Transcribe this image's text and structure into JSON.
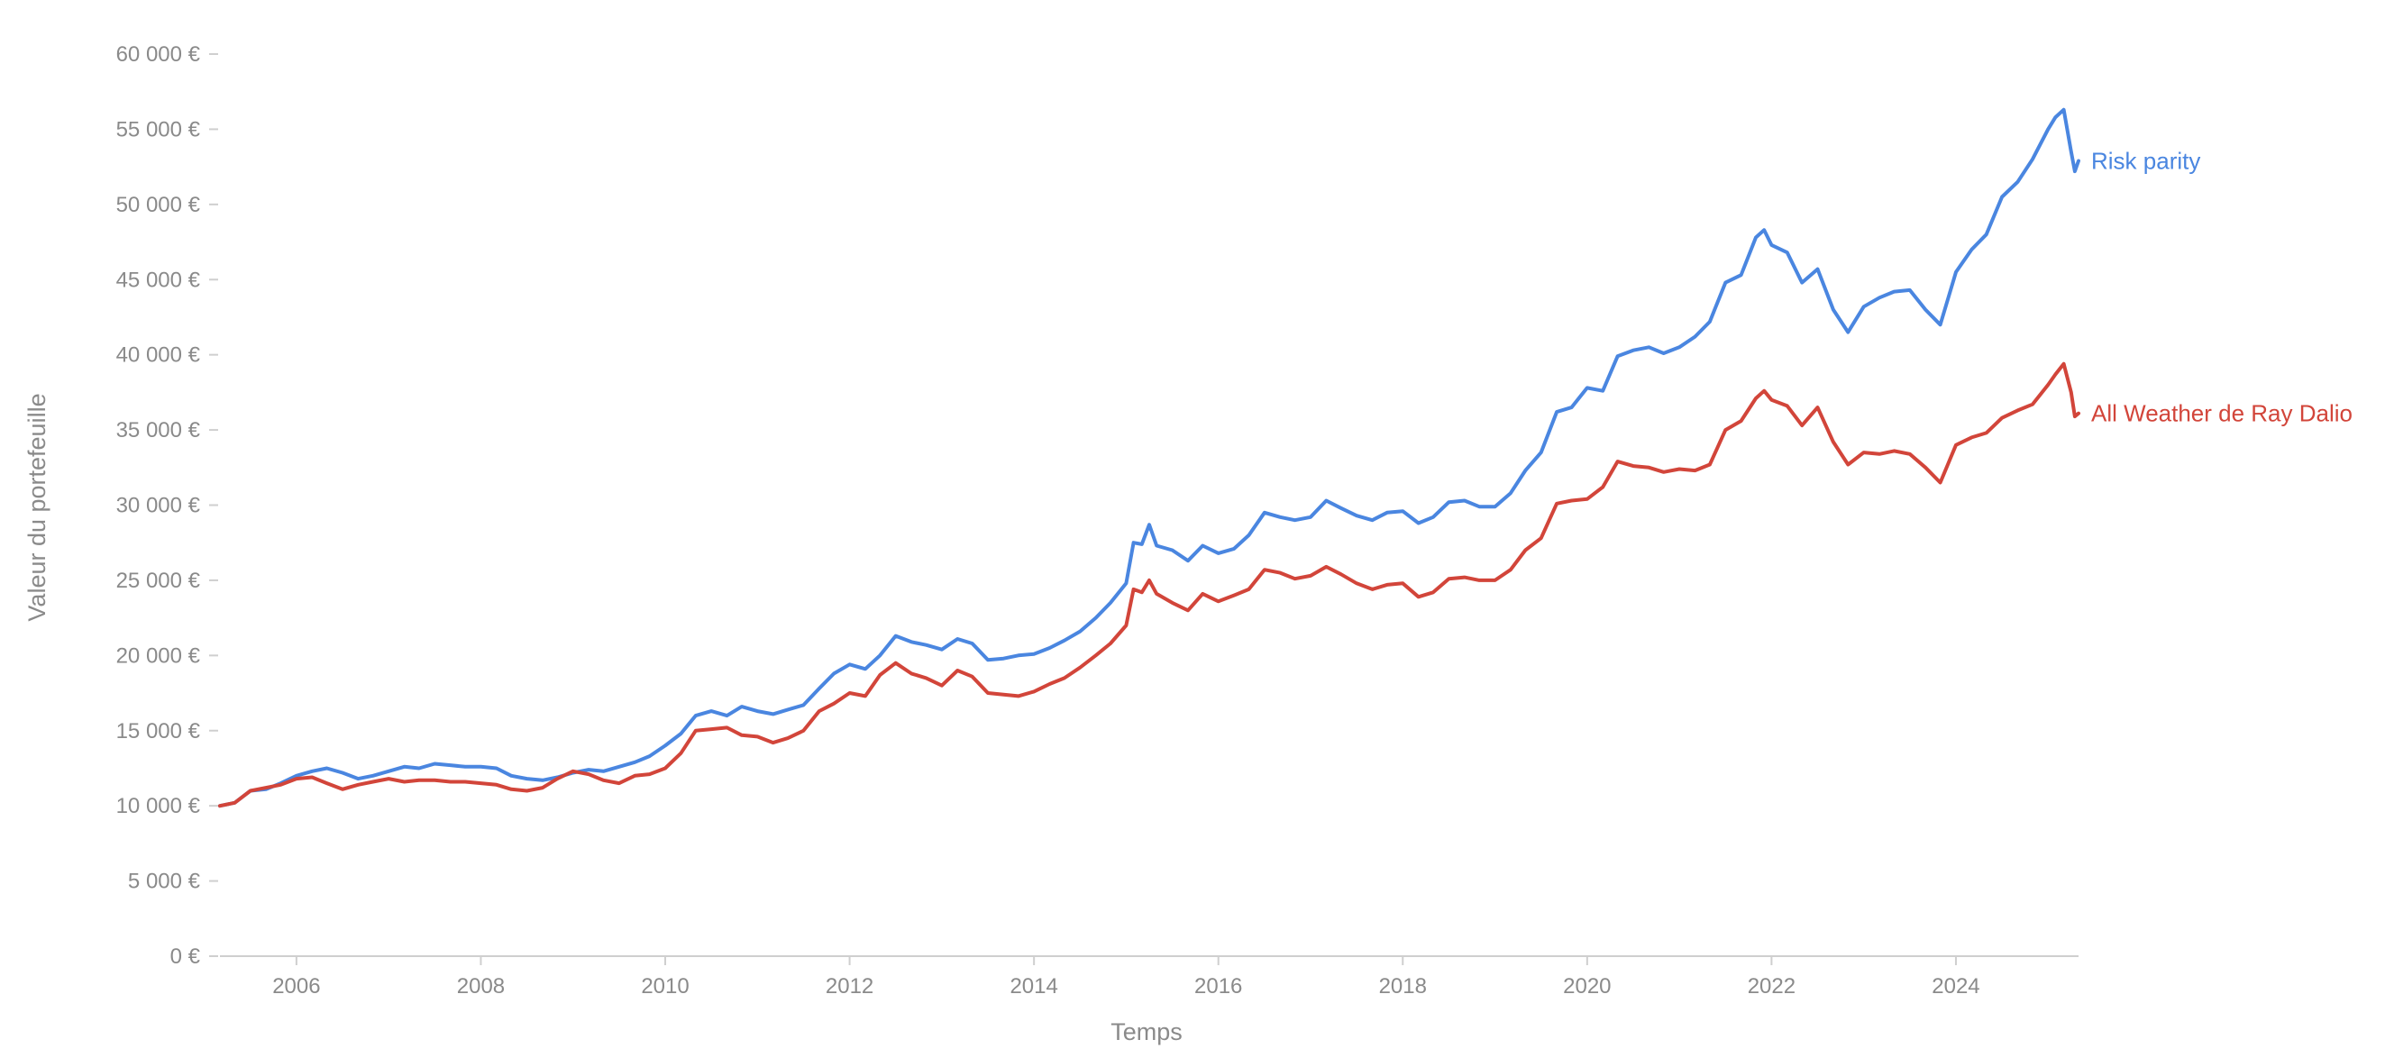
{
  "chart_data": {
    "type": "line",
    "xlabel": "Temps",
    "ylabel": "Valeur du portefeuille",
    "ylim": [
      0,
      60000
    ],
    "xlim": [
      2005.17,
      2025.33
    ],
    "yticks": [
      0,
      5000,
      10000,
      15000,
      20000,
      25000,
      30000,
      35000,
      40000,
      45000,
      50000,
      55000,
      60000
    ],
    "ytick_labels": [
      "0 €",
      "5 000 €",
      "10 000 €",
      "15 000 €",
      "20 000 €",
      "25 000 €",
      "30 000 €",
      "35 000 €",
      "40 000 €",
      "45 000 €",
      "50 000 €",
      "55 000 €",
      "60 000 €"
    ],
    "xticks": [
      2006,
      2008,
      2010,
      2012,
      2014,
      2016,
      2018,
      2020,
      2022,
      2024
    ],
    "xtick_labels": [
      "2006",
      "2008",
      "2010",
      "2012",
      "2014",
      "2016",
      "2018",
      "2020",
      "2022",
      "2024"
    ],
    "grid": false,
    "legend": "direct labels at line ends",
    "series": [
      {
        "name": "Risk parity",
        "color": "#4a86e0",
        "points": [
          [
            2005.17,
            10000
          ],
          [
            2005.33,
            10200
          ],
          [
            2005.5,
            11000
          ],
          [
            2005.67,
            11100
          ],
          [
            2005.83,
            11500
          ],
          [
            2006.0,
            12000
          ],
          [
            2006.17,
            12300
          ],
          [
            2006.33,
            12500
          ],
          [
            2006.5,
            12200
          ],
          [
            2006.67,
            11800
          ],
          [
            2006.83,
            12000
          ],
          [
            2007.0,
            12300
          ],
          [
            2007.17,
            12600
          ],
          [
            2007.33,
            12500
          ],
          [
            2007.5,
            12800
          ],
          [
            2007.67,
            12700
          ],
          [
            2007.83,
            12600
          ],
          [
            2008.0,
            12600
          ],
          [
            2008.17,
            12500
          ],
          [
            2008.33,
            12000
          ],
          [
            2008.5,
            11800
          ],
          [
            2008.67,
            11700
          ],
          [
            2008.83,
            11900
          ],
          [
            2009.0,
            12200
          ],
          [
            2009.17,
            12400
          ],
          [
            2009.33,
            12300
          ],
          [
            2009.5,
            12600
          ],
          [
            2009.67,
            12900
          ],
          [
            2009.83,
            13300
          ],
          [
            2010.0,
            14000
          ],
          [
            2010.17,
            14800
          ],
          [
            2010.33,
            16000
          ],
          [
            2010.5,
            16300
          ],
          [
            2010.67,
            16000
          ],
          [
            2010.83,
            16600
          ],
          [
            2011.0,
            16300
          ],
          [
            2011.17,
            16100
          ],
          [
            2011.33,
            16400
          ],
          [
            2011.5,
            16700
          ],
          [
            2011.67,
            17800
          ],
          [
            2011.83,
            18800
          ],
          [
            2012.0,
            19400
          ],
          [
            2012.17,
            19100
          ],
          [
            2012.33,
            20000
          ],
          [
            2012.5,
            21300
          ],
          [
            2012.67,
            20900
          ],
          [
            2012.83,
            20700
          ],
          [
            2013.0,
            20400
          ],
          [
            2013.17,
            21100
          ],
          [
            2013.33,
            20800
          ],
          [
            2013.5,
            19700
          ],
          [
            2013.67,
            19800
          ],
          [
            2013.83,
            20000
          ],
          [
            2014.0,
            20100
          ],
          [
            2014.17,
            20500
          ],
          [
            2014.33,
            21000
          ],
          [
            2014.5,
            21600
          ],
          [
            2014.67,
            22500
          ],
          [
            2014.83,
            23500
          ],
          [
            2015.0,
            24800
          ],
          [
            2015.08,
            27500
          ],
          [
            2015.17,
            27400
          ],
          [
            2015.25,
            28700
          ],
          [
            2015.33,
            27300
          ],
          [
            2015.5,
            27000
          ],
          [
            2015.67,
            26300
          ],
          [
            2015.83,
            27300
          ],
          [
            2016.0,
            26800
          ],
          [
            2016.17,
            27100
          ],
          [
            2016.33,
            28000
          ],
          [
            2016.5,
            29500
          ],
          [
            2016.67,
            29200
          ],
          [
            2016.83,
            29000
          ],
          [
            2017.0,
            29200
          ],
          [
            2017.17,
            30300
          ],
          [
            2017.33,
            29800
          ],
          [
            2017.5,
            29300
          ],
          [
            2017.67,
            29000
          ],
          [
            2017.83,
            29500
          ],
          [
            2018.0,
            29600
          ],
          [
            2018.17,
            28800
          ],
          [
            2018.33,
            29200
          ],
          [
            2018.5,
            30200
          ],
          [
            2018.67,
            30300
          ],
          [
            2018.83,
            29900
          ],
          [
            2019.0,
            29900
          ],
          [
            2019.17,
            30800
          ],
          [
            2019.33,
            32300
          ],
          [
            2019.5,
            33500
          ],
          [
            2019.67,
            36200
          ],
          [
            2019.83,
            36500
          ],
          [
            2020.0,
            37800
          ],
          [
            2020.17,
            37600
          ],
          [
            2020.33,
            39900
          ],
          [
            2020.5,
            40300
          ],
          [
            2020.67,
            40500
          ],
          [
            2020.83,
            40100
          ],
          [
            2021.0,
            40500
          ],
          [
            2021.17,
            41200
          ],
          [
            2021.33,
            42200
          ],
          [
            2021.5,
            44800
          ],
          [
            2021.67,
            45300
          ],
          [
            2021.83,
            47800
          ],
          [
            2021.92,
            48300
          ],
          [
            2022.0,
            47300
          ],
          [
            2022.17,
            46800
          ],
          [
            2022.33,
            44800
          ],
          [
            2022.5,
            45700
          ],
          [
            2022.67,
            43000
          ],
          [
            2022.83,
            41500
          ],
          [
            2023.0,
            43200
          ],
          [
            2023.17,
            43800
          ],
          [
            2023.33,
            44200
          ],
          [
            2023.5,
            44300
          ],
          [
            2023.67,
            43000
          ],
          [
            2023.83,
            42000
          ],
          [
            2024.0,
            45500
          ],
          [
            2024.17,
            47000
          ],
          [
            2024.33,
            48000
          ],
          [
            2024.5,
            50500
          ],
          [
            2024.67,
            51500
          ],
          [
            2024.83,
            53000
          ],
          [
            2025.0,
            55000
          ],
          [
            2025.08,
            55800
          ],
          [
            2025.17,
            56300
          ],
          [
            2025.25,
            53500
          ],
          [
            2025.29,
            52200
          ],
          [
            2025.33,
            52900
          ]
        ]
      },
      {
        "name": "All Weather de Ray Dalio",
        "color": "#d2453a",
        "points": [
          [
            2005.17,
            10000
          ],
          [
            2005.33,
            10200
          ],
          [
            2005.5,
            11000
          ],
          [
            2005.67,
            11200
          ],
          [
            2005.83,
            11400
          ],
          [
            2006.0,
            11800
          ],
          [
            2006.17,
            11900
          ],
          [
            2006.33,
            11500
          ],
          [
            2006.5,
            11100
          ],
          [
            2006.67,
            11400
          ],
          [
            2006.83,
            11600
          ],
          [
            2007.0,
            11800
          ],
          [
            2007.17,
            11600
          ],
          [
            2007.33,
            11700
          ],
          [
            2007.5,
            11700
          ],
          [
            2007.67,
            11600
          ],
          [
            2007.83,
            11600
          ],
          [
            2008.0,
            11500
          ],
          [
            2008.17,
            11400
          ],
          [
            2008.33,
            11100
          ],
          [
            2008.5,
            11000
          ],
          [
            2008.67,
            11200
          ],
          [
            2008.83,
            11800
          ],
          [
            2009.0,
            12300
          ],
          [
            2009.17,
            12100
          ],
          [
            2009.33,
            11700
          ],
          [
            2009.5,
            11500
          ],
          [
            2009.67,
            12000
          ],
          [
            2009.83,
            12100
          ],
          [
            2010.0,
            12500
          ],
          [
            2010.17,
            13500
          ],
          [
            2010.33,
            15000
          ],
          [
            2010.5,
            15100
          ],
          [
            2010.67,
            15200
          ],
          [
            2010.83,
            14700
          ],
          [
            2011.0,
            14600
          ],
          [
            2011.17,
            14200
          ],
          [
            2011.33,
            14500
          ],
          [
            2011.5,
            15000
          ],
          [
            2011.67,
            16300
          ],
          [
            2011.83,
            16800
          ],
          [
            2012.0,
            17500
          ],
          [
            2012.17,
            17300
          ],
          [
            2012.33,
            18700
          ],
          [
            2012.5,
            19500
          ],
          [
            2012.67,
            18800
          ],
          [
            2012.83,
            18500
          ],
          [
            2013.0,
            18000
          ],
          [
            2013.17,
            19000
          ],
          [
            2013.33,
            18600
          ],
          [
            2013.5,
            17500
          ],
          [
            2013.67,
            17400
          ],
          [
            2013.83,
            17300
          ],
          [
            2014.0,
            17600
          ],
          [
            2014.17,
            18100
          ],
          [
            2014.33,
            18500
          ],
          [
            2014.5,
            19200
          ],
          [
            2014.67,
            20000
          ],
          [
            2014.83,
            20800
          ],
          [
            2015.0,
            22000
          ],
          [
            2015.08,
            24400
          ],
          [
            2015.17,
            24200
          ],
          [
            2015.25,
            25000
          ],
          [
            2015.33,
            24100
          ],
          [
            2015.5,
            23500
          ],
          [
            2015.67,
            23000
          ],
          [
            2015.83,
            24100
          ],
          [
            2016.0,
            23600
          ],
          [
            2016.17,
            24000
          ],
          [
            2016.33,
            24400
          ],
          [
            2016.5,
            25700
          ],
          [
            2016.67,
            25500
          ],
          [
            2016.83,
            25100
          ],
          [
            2017.0,
            25300
          ],
          [
            2017.17,
            25900
          ],
          [
            2017.33,
            25400
          ],
          [
            2017.5,
            24800
          ],
          [
            2017.67,
            24400
          ],
          [
            2017.83,
            24700
          ],
          [
            2018.0,
            24800
          ],
          [
            2018.17,
            23900
          ],
          [
            2018.33,
            24200
          ],
          [
            2018.5,
            25100
          ],
          [
            2018.67,
            25200
          ],
          [
            2018.83,
            25000
          ],
          [
            2019.0,
            25000
          ],
          [
            2019.17,
            25700
          ],
          [
            2019.33,
            27000
          ],
          [
            2019.5,
            27800
          ],
          [
            2019.67,
            30100
          ],
          [
            2019.83,
            30300
          ],
          [
            2020.0,
            30400
          ],
          [
            2020.17,
            31200
          ],
          [
            2020.33,
            32900
          ],
          [
            2020.5,
            32600
          ],
          [
            2020.67,
            32500
          ],
          [
            2020.83,
            32200
          ],
          [
            2021.0,
            32400
          ],
          [
            2021.17,
            32300
          ],
          [
            2021.33,
            32700
          ],
          [
            2021.5,
            35000
          ],
          [
            2021.67,
            35600
          ],
          [
            2021.83,
            37100
          ],
          [
            2021.92,
            37600
          ],
          [
            2022.0,
            37000
          ],
          [
            2022.17,
            36600
          ],
          [
            2022.33,
            35300
          ],
          [
            2022.5,
            36500
          ],
          [
            2022.67,
            34200
          ],
          [
            2022.83,
            32700
          ],
          [
            2023.0,
            33500
          ],
          [
            2023.17,
            33400
          ],
          [
            2023.33,
            33600
          ],
          [
            2023.5,
            33400
          ],
          [
            2023.67,
            32500
          ],
          [
            2023.83,
            31500
          ],
          [
            2024.0,
            34000
          ],
          [
            2024.17,
            34500
          ],
          [
            2024.33,
            34800
          ],
          [
            2024.5,
            35800
          ],
          [
            2024.67,
            36300
          ],
          [
            2024.83,
            36700
          ],
          [
            2025.0,
            38000
          ],
          [
            2025.08,
            38700
          ],
          [
            2025.17,
            39400
          ],
          [
            2025.25,
            37500
          ],
          [
            2025.29,
            35900
          ],
          [
            2025.33,
            36100
          ]
        ]
      }
    ]
  }
}
